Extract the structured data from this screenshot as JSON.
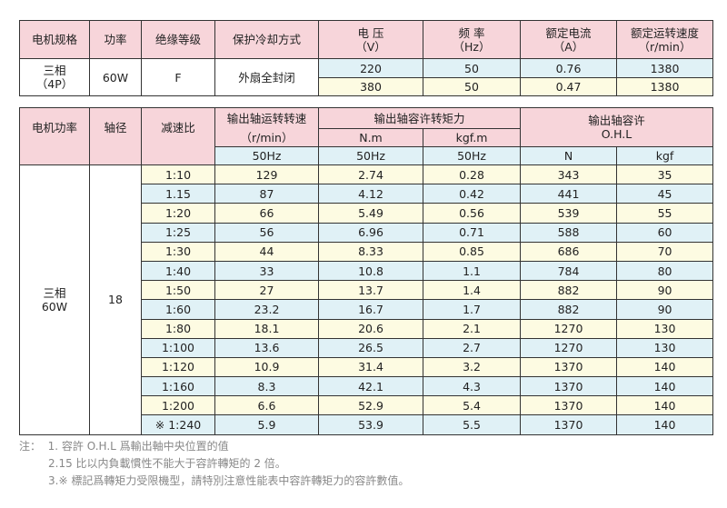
{
  "spec_table": {
    "headers": [
      "电机规格",
      "功率",
      "绝缘等级",
      "保护冷却方式",
      "电 压",
      "（V）",
      "频 率",
      "（Hz）",
      "额定电流",
      "（A）",
      "额定运转速度",
      "（r/min）"
    ],
    "motor": "三相",
    "poles": "（4P）",
    "power": "60W",
    "insulation": "F",
    "cooling": "外扇全封闭",
    "rows": [
      [
        "220",
        "50",
        "0.76",
        "1380"
      ],
      [
        "380",
        "50",
        "0.47",
        "1380"
      ]
    ]
  },
  "perf_table": {
    "h_power": "电机功率",
    "h_shaft": "轴径",
    "h_ratio": "减速比",
    "h_speed": "输出轴运转转速",
    "h_speed_unit": "（r/min）",
    "h_torque": "输出轴容许转矩力",
    "h_nm": "N.m",
    "h_kgfm": "kgf.m",
    "h_ohl": "输出轴容许",
    "h_ohl2": "O.H.L",
    "hz": "50Hz",
    "h_n": "N",
    "h_kgf": "kgf",
    "motor": "三相",
    "power": "60W",
    "shaft": "18",
    "rows": [
      [
        "1:10",
        "129",
        "2.74",
        "0.28",
        "343",
        "35"
      ],
      [
        "1.15",
        "87",
        "4.12",
        "0.42",
        "441",
        "45"
      ],
      [
        "1:20",
        "66",
        "5.49",
        "0.56",
        "539",
        "55"
      ],
      [
        "1:25",
        "56",
        "6.96",
        "0.71",
        "588",
        "60"
      ],
      [
        "1:30",
        "44",
        "8.33",
        "0.85",
        "686",
        "70"
      ],
      [
        "1:40",
        "33",
        "10.8",
        "1.1",
        "784",
        "80"
      ],
      [
        "1:50",
        "27",
        "13.7",
        "1.4",
        "882",
        "90"
      ],
      [
        "1:60",
        "23.2",
        "16.7",
        "1.7",
        "882",
        "90"
      ],
      [
        "1:80",
        "18.1",
        "20.6",
        "2.1",
        "1270",
        "130"
      ],
      [
        "1:100",
        "13.6",
        "26.5",
        "2.7",
        "1270",
        "130"
      ],
      [
        "1:120",
        "10.9",
        "31.4",
        "3.2",
        "1370",
        "140"
      ],
      [
        "1:160",
        "8.3",
        "42.1",
        "4.3",
        "1370",
        "140"
      ],
      [
        "1:200",
        "6.6",
        "52.9",
        "5.4",
        "1370",
        "140"
      ],
      [
        "※ 1:240",
        "5.9",
        "53.9",
        "5.5",
        "1370",
        "140"
      ]
    ]
  },
  "notes": {
    "label": "注：",
    "items": [
      "1. 容許 O.H.L 爲輸出軸中央位置的值",
      "2.15 比以内負載慣性不能大于容許轉矩的 2 倍。",
      "3.※ 標記爲轉矩力受限機型，請特別注意性能表中容許轉矩力的容許數值。"
    ]
  },
  "colors": {
    "header": "#f7d5da",
    "blue": "#e0f1f6",
    "yellow": "#fdfbe2"
  }
}
